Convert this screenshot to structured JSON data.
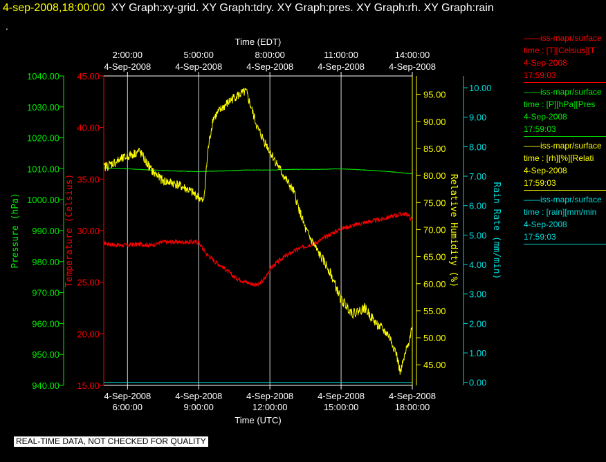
{
  "header": {
    "timestamp": "4-sep-2008,18:00:00",
    "graphs": "XY Graph:xy-grid.  XY Graph:tdry.  XY Graph:pres.  XY Graph:rh.  XY Graph:rain",
    "dot": "."
  },
  "footer": "REAL-TIME DATA, NOT CHECKED FOR QUALITY",
  "legend": [
    {
      "line1": "——iss-mapr/surface",
      "line2": "time : [T][Celsius][T",
      "line3": "4-Sep-2008",
      "line4": "17:59:03",
      "color": "#ff0000"
    },
    {
      "line1": "——iss-mapr/surface",
      "line2": "time : [P][hPa][Pres",
      "line3": "4-Sep-2008",
      "line4": "17:59:03",
      "color": "#00ee00"
    },
    {
      "line1": "——iss-mapr/surface",
      "line2": "time : [rh][%][Relati",
      "line3": "4-Sep-2008",
      "line4": "17:59:03",
      "color": "#ffff00"
    },
    {
      "line1": "——iss-mapr/surface",
      "line2": "time : [rain][mm/min",
      "line3": "4-Sep-2008",
      "line4": "17:59:03",
      "color": "#00dddd"
    }
  ],
  "chart_data": {
    "type": "line",
    "xlabel_bottom": "Time (UTC)",
    "xlabel_top": "Time (EDT)",
    "xlim": [
      5.0,
      18.0
    ],
    "x_ticks_bottom": [
      {
        "x": 6,
        "date": "4-Sep-2008",
        "time": "6:00:00"
      },
      {
        "x": 9,
        "date": "4-Sep-2008",
        "time": "9:00:00"
      },
      {
        "x": 12,
        "date": "4-Sep-2008",
        "time": "12:00:00"
      },
      {
        "x": 15,
        "date": "4-Sep-2008",
        "time": "15:00:00"
      },
      {
        "x": 18,
        "date": "4-Sep-2008",
        "time": "18:00:00"
      }
    ],
    "x_ticks_top": [
      {
        "x": 6,
        "time": "2:00:00",
        "date": "4-Sep-2008"
      },
      {
        "x": 9,
        "time": "5:00:00",
        "date": "4-Sep-2008"
      },
      {
        "x": 12,
        "time": "8:00:00",
        "date": "4-Sep-2008"
      },
      {
        "x": 15,
        "time": "11:00:00",
        "date": "4-Sep-2008"
      },
      {
        "x": 18,
        "time": "14:00:00",
        "date": "4-Sep-2008"
      }
    ],
    "axes": {
      "pressure": {
        "label": "Pressure (hPa)",
        "min": 940,
        "max": 1040,
        "ticks": [
          "940.00",
          "950.00",
          "960.00",
          "970.00",
          "980.00",
          "990.00",
          "1000.00",
          "1010.00",
          "1020.00",
          "1030.00",
          "1040.00"
        ],
        "color": "#00ee00"
      },
      "temperature": {
        "label": "Temperature (Celsius)",
        "min": 15,
        "max": 45,
        "ticks": [
          "15.00",
          "20.00",
          "25.00",
          "30.00",
          "35.00",
          "40.00",
          "45.00"
        ],
        "color": "#ff0000"
      },
      "rh": {
        "label": "Relative Humidity (%)",
        "min": 41.2,
        "max": 98.4,
        "ticks": [
          "45.00",
          "50.00",
          "55.00",
          "60.00",
          "65.00",
          "70.00",
          "75.00",
          "80.00",
          "85.00",
          "90.00",
          "95.00"
        ],
        "color": "#ffff00"
      },
      "rain": {
        "label": "Rain Rate (mm/min)",
        "min": -0.1,
        "max": 10.4,
        "ticks": [
          "0.00",
          "1.00",
          "2.00",
          "3.00",
          "4.00",
          "5.00",
          "6.00",
          "7.00",
          "8.00",
          "9.00",
          "10.00"
        ],
        "color": "#00dddd"
      }
    },
    "grid": "vertical",
    "series": [
      {
        "axis": "temperature",
        "color": "#ff0000",
        "x": [
          5.0,
          5.5,
          6.0,
          6.5,
          7.0,
          7.5,
          8.0,
          8.5,
          9.0,
          9.3,
          9.7,
          10.0,
          10.5,
          11.0,
          11.5,
          11.8,
          12.0,
          12.5,
          13.0,
          13.5,
          14.0,
          14.5,
          15.0,
          15.5,
          16.0,
          16.5,
          17.0,
          17.5,
          17.8,
          18.0
        ],
        "y": [
          28.8,
          28.6,
          28.6,
          28.7,
          28.6,
          28.9,
          28.9,
          28.9,
          28.9,
          27.8,
          27.0,
          26.5,
          25.5,
          25.0,
          24.7,
          25.4,
          26.3,
          27.3,
          28.0,
          28.5,
          28.9,
          29.6,
          30.2,
          30.5,
          30.8,
          31.0,
          31.3,
          31.6,
          31.6,
          31.0
        ]
      },
      {
        "axis": "pressure",
        "color": "#00ee00",
        "x": [
          5.0,
          6.0,
          7.0,
          8.0,
          9.0,
          10.0,
          11.0,
          12.0,
          13.0,
          14.0,
          15.0,
          16.0,
          17.0,
          18.0
        ],
        "y": [
          1010.3,
          1010.0,
          1009.6,
          1009.3,
          1009.1,
          1009.3,
          1009.6,
          1009.6,
          1009.8,
          1009.8,
          1010.0,
          1009.6,
          1009.1,
          1008.4
        ]
      },
      {
        "axis": "rh",
        "color": "#ffff00",
        "x": [
          5.0,
          5.5,
          6.0,
          6.5,
          7.0,
          7.5,
          8.0,
          8.5,
          9.0,
          9.2,
          9.4,
          9.6,
          10.0,
          10.5,
          11.0,
          11.5,
          12.0,
          12.5,
          13.0,
          13.5,
          14.0,
          14.5,
          15.0,
          15.5,
          16.0,
          16.5,
          17.0,
          17.3,
          17.5,
          17.8,
          18.0
        ],
        "y": [
          81.5,
          82.5,
          83.5,
          84.5,
          81.0,
          79.0,
          78.5,
          77.5,
          76.0,
          75.0,
          85.0,
          90.5,
          92.5,
          94.5,
          95.5,
          88.5,
          84.5,
          80.5,
          77.0,
          70.0,
          66.0,
          62.5,
          57.0,
          54.5,
          55.5,
          52.5,
          50.5,
          47.5,
          43.5,
          48.5,
          52.0
        ]
      },
      {
        "axis": "rain",
        "color": "#00dddd",
        "x": [
          5.0,
          18.0
        ],
        "y": [
          0.0,
          0.0
        ]
      }
    ]
  }
}
